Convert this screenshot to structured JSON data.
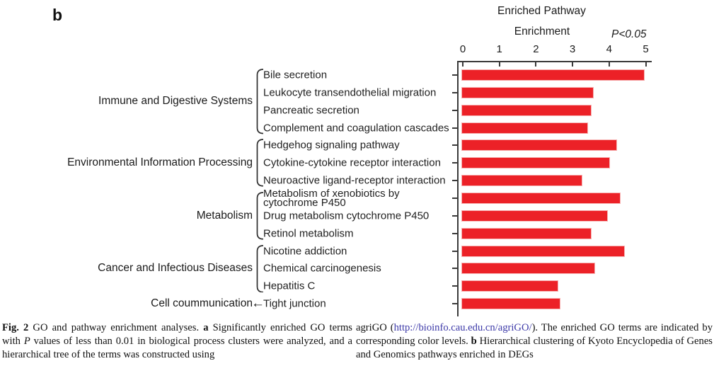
{
  "panel": {
    "label": "b"
  },
  "chart_data": {
    "type": "bar",
    "orientation": "horizontal",
    "title": "Enriched Pathway",
    "subtitle": "Enrichment",
    "annotation": "P<0.05",
    "xlabel": "",
    "ylabel": "",
    "xlim": [
      0,
      5
    ],
    "xticks": [
      0,
      1,
      2,
      3,
      4,
      5
    ],
    "grid": false,
    "legend": "none",
    "bar_color": "#ec2127",
    "axis_color": "#3a3a3a",
    "categories": [
      "Bile secretion",
      "Leukocyte transendothelial migration",
      "Pancreatic secretion",
      "Complement and coagulation cascades",
      "Hedgehog signaling pathway",
      "Cytokine-cytokine receptor interaction",
      "Neuroactive ligand-receptor interaction",
      "Metabolism of xenobiotics by\ncytochrome P450",
      "Drug metabolism cytochrome P450",
      "Retinol metabolism",
      "Nicotine addiction",
      "Chemical carcinogenesis",
      "Hepatitis C",
      "Tight junction"
    ],
    "values": [
      4.95,
      3.55,
      3.5,
      3.4,
      4.2,
      4.0,
      3.25,
      4.3,
      3.95,
      3.5,
      4.4,
      3.6,
      2.6,
      2.65
    ],
    "groups": [
      {
        "label": "Immune and Digestive Systems",
        "rows": [
          0,
          3
        ],
        "bracket": "brace"
      },
      {
        "label": "Environmental Information Processing",
        "rows": [
          4,
          6
        ],
        "bracket": "brace"
      },
      {
        "label": "Metabolism",
        "rows": [
          7,
          9
        ],
        "bracket": "brace"
      },
      {
        "label": "Cancer and Infectious Diseases",
        "rows": [
          10,
          12
        ],
        "bracket": "brace"
      },
      {
        "label": "Cell coummunication",
        "rows": [
          13,
          13
        ],
        "bracket": "arrow"
      }
    ]
  },
  "icons": {
    "left_arrow": "←"
  },
  "caption": {
    "link_color": "#3c39a8",
    "left": [
      {
        "t": "Fig. 2",
        "b": true
      },
      {
        "t": "  GO and pathway enrichment analyses. "
      },
      {
        "t": "a",
        "b": true
      },
      {
        "t": " Significantly enriched GO terms with "
      },
      {
        "t": "P",
        "i": true
      },
      {
        "t": " values of less than 0.01 in biological process clusters were analyzed, and a hierarchical tree of the terms was constructed using"
      }
    ],
    "right": [
      {
        "t": "agriGO ("
      },
      {
        "t": "http://bioinfo.cau.edu.cn/agriGO/",
        "link": true
      },
      {
        "t": "). The enriched GO terms are indicated by corresponding color levels. "
      },
      {
        "t": "b",
        "b": true
      },
      {
        "t": " Hierarchical clustering of Kyoto Encyclopedia of Genes and Genomics pathways enriched in DEGs"
      }
    ]
  }
}
